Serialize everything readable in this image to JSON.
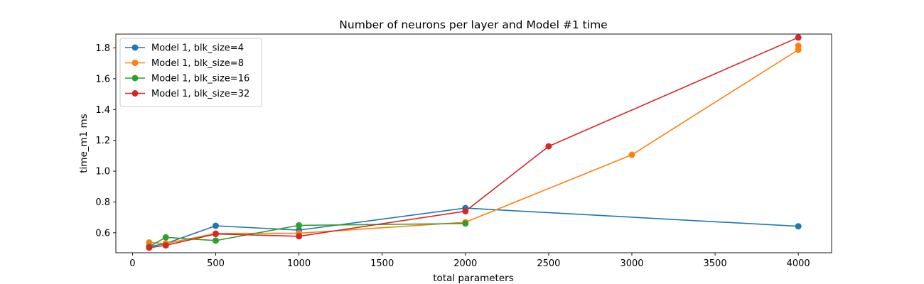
{
  "chart_data": {
    "type": "line",
    "title": "Number of neurons per layer and Model #1 time",
    "xlabel": "total parameters",
    "ylabel": "time_m1 ms",
    "xlim": [
      -100,
      4200
    ],
    "ylim": [
      0.47,
      1.89
    ],
    "xticks": [
      0,
      500,
      1000,
      1500,
      2000,
      2500,
      3000,
      3500,
      4000
    ],
    "yticks": [
      0.6,
      0.8,
      1.0,
      1.2,
      1.4,
      1.6,
      1.8
    ],
    "grid": false,
    "legend_position": "upper-left",
    "series": [
      {
        "name": "Model 1, blk_size=4",
        "color": "#1f77b4",
        "points": [
          [
            100,
            0.51
          ],
          [
            200,
            0.53
          ],
          [
            500,
            0.645
          ],
          [
            1000,
            0.617
          ],
          [
            2000,
            0.76
          ],
          [
            4000,
            0.642
          ]
        ]
      },
      {
        "name": "Model 1, blk_size=8",
        "color": "#ff7f0e",
        "points": [
          [
            100,
            0.537
          ],
          [
            200,
            0.53
          ],
          [
            500,
            0.595
          ],
          [
            1000,
            0.597
          ],
          [
            2000,
            0.668
          ],
          [
            3000,
            1.106
          ],
          [
            4000,
            1.788
          ],
          [
            4000,
            1.814
          ]
        ]
      },
      {
        "name": "Model 1, blk_size=16",
        "color": "#2ca02c",
        "points": [
          [
            100,
            0.51
          ],
          [
            200,
            0.57
          ],
          [
            500,
            0.549
          ],
          [
            1000,
            0.648
          ],
          [
            2000,
            0.66
          ]
        ]
      },
      {
        "name": "Model 1, blk_size=32",
        "color": "#d62728",
        "points": [
          [
            100,
            0.503
          ],
          [
            200,
            0.518
          ],
          [
            500,
            0.592
          ],
          [
            1000,
            0.577
          ],
          [
            2000,
            0.74
          ],
          [
            2500,
            1.161
          ],
          [
            4000,
            1.868
          ]
        ]
      }
    ]
  }
}
